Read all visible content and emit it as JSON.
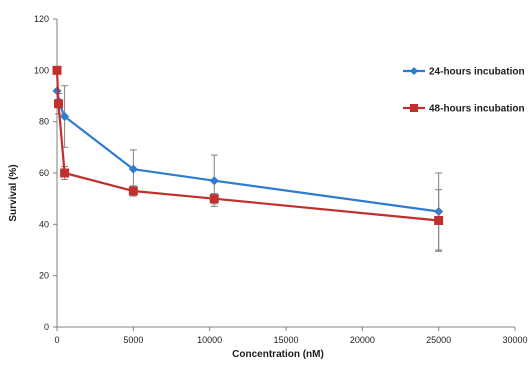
{
  "chart_data": {
    "type": "line",
    "title": "",
    "xlabel": "Concentration (nM)",
    "ylabel": "Survival (%)",
    "xlim": [
      0,
      30000
    ],
    "ylim": [
      0,
      120
    ],
    "xticks": [
      0,
      5000,
      10000,
      15000,
      20000,
      25000,
      30000
    ],
    "yticks": [
      0,
      20,
      40,
      60,
      80,
      100,
      120
    ],
    "grid": false,
    "legend_position": "right",
    "series": [
      {
        "name": "24-hours incubation",
        "color": "#2E7BD1",
        "marker": "diamond",
        "points": [
          {
            "x": 0,
            "y": 92,
            "err": 0
          },
          {
            "x": 100,
            "y": 88,
            "err": 0
          },
          {
            "x": 500,
            "y": 82,
            "err": 12
          },
          {
            "x": 5000,
            "y": 61.5,
            "err": 7.5
          },
          {
            "x": 10300,
            "y": 57,
            "err": 10
          },
          {
            "x": 25000,
            "y": 45,
            "err": 15
          }
        ]
      },
      {
        "name": "48-hours incubation",
        "color": "#C0302D",
        "marker": "square",
        "points": [
          {
            "x": 0,
            "y": 100,
            "err": 0
          },
          {
            "x": 100,
            "y": 87,
            "err": 4
          },
          {
            "x": 500,
            "y": 60,
            "err": 2.5
          },
          {
            "x": 5000,
            "y": 53,
            "err": 2
          },
          {
            "x": 10300,
            "y": 50,
            "err": 2
          },
          {
            "x": 25000,
            "y": 41.5,
            "err": 12
          }
        ]
      }
    ]
  }
}
